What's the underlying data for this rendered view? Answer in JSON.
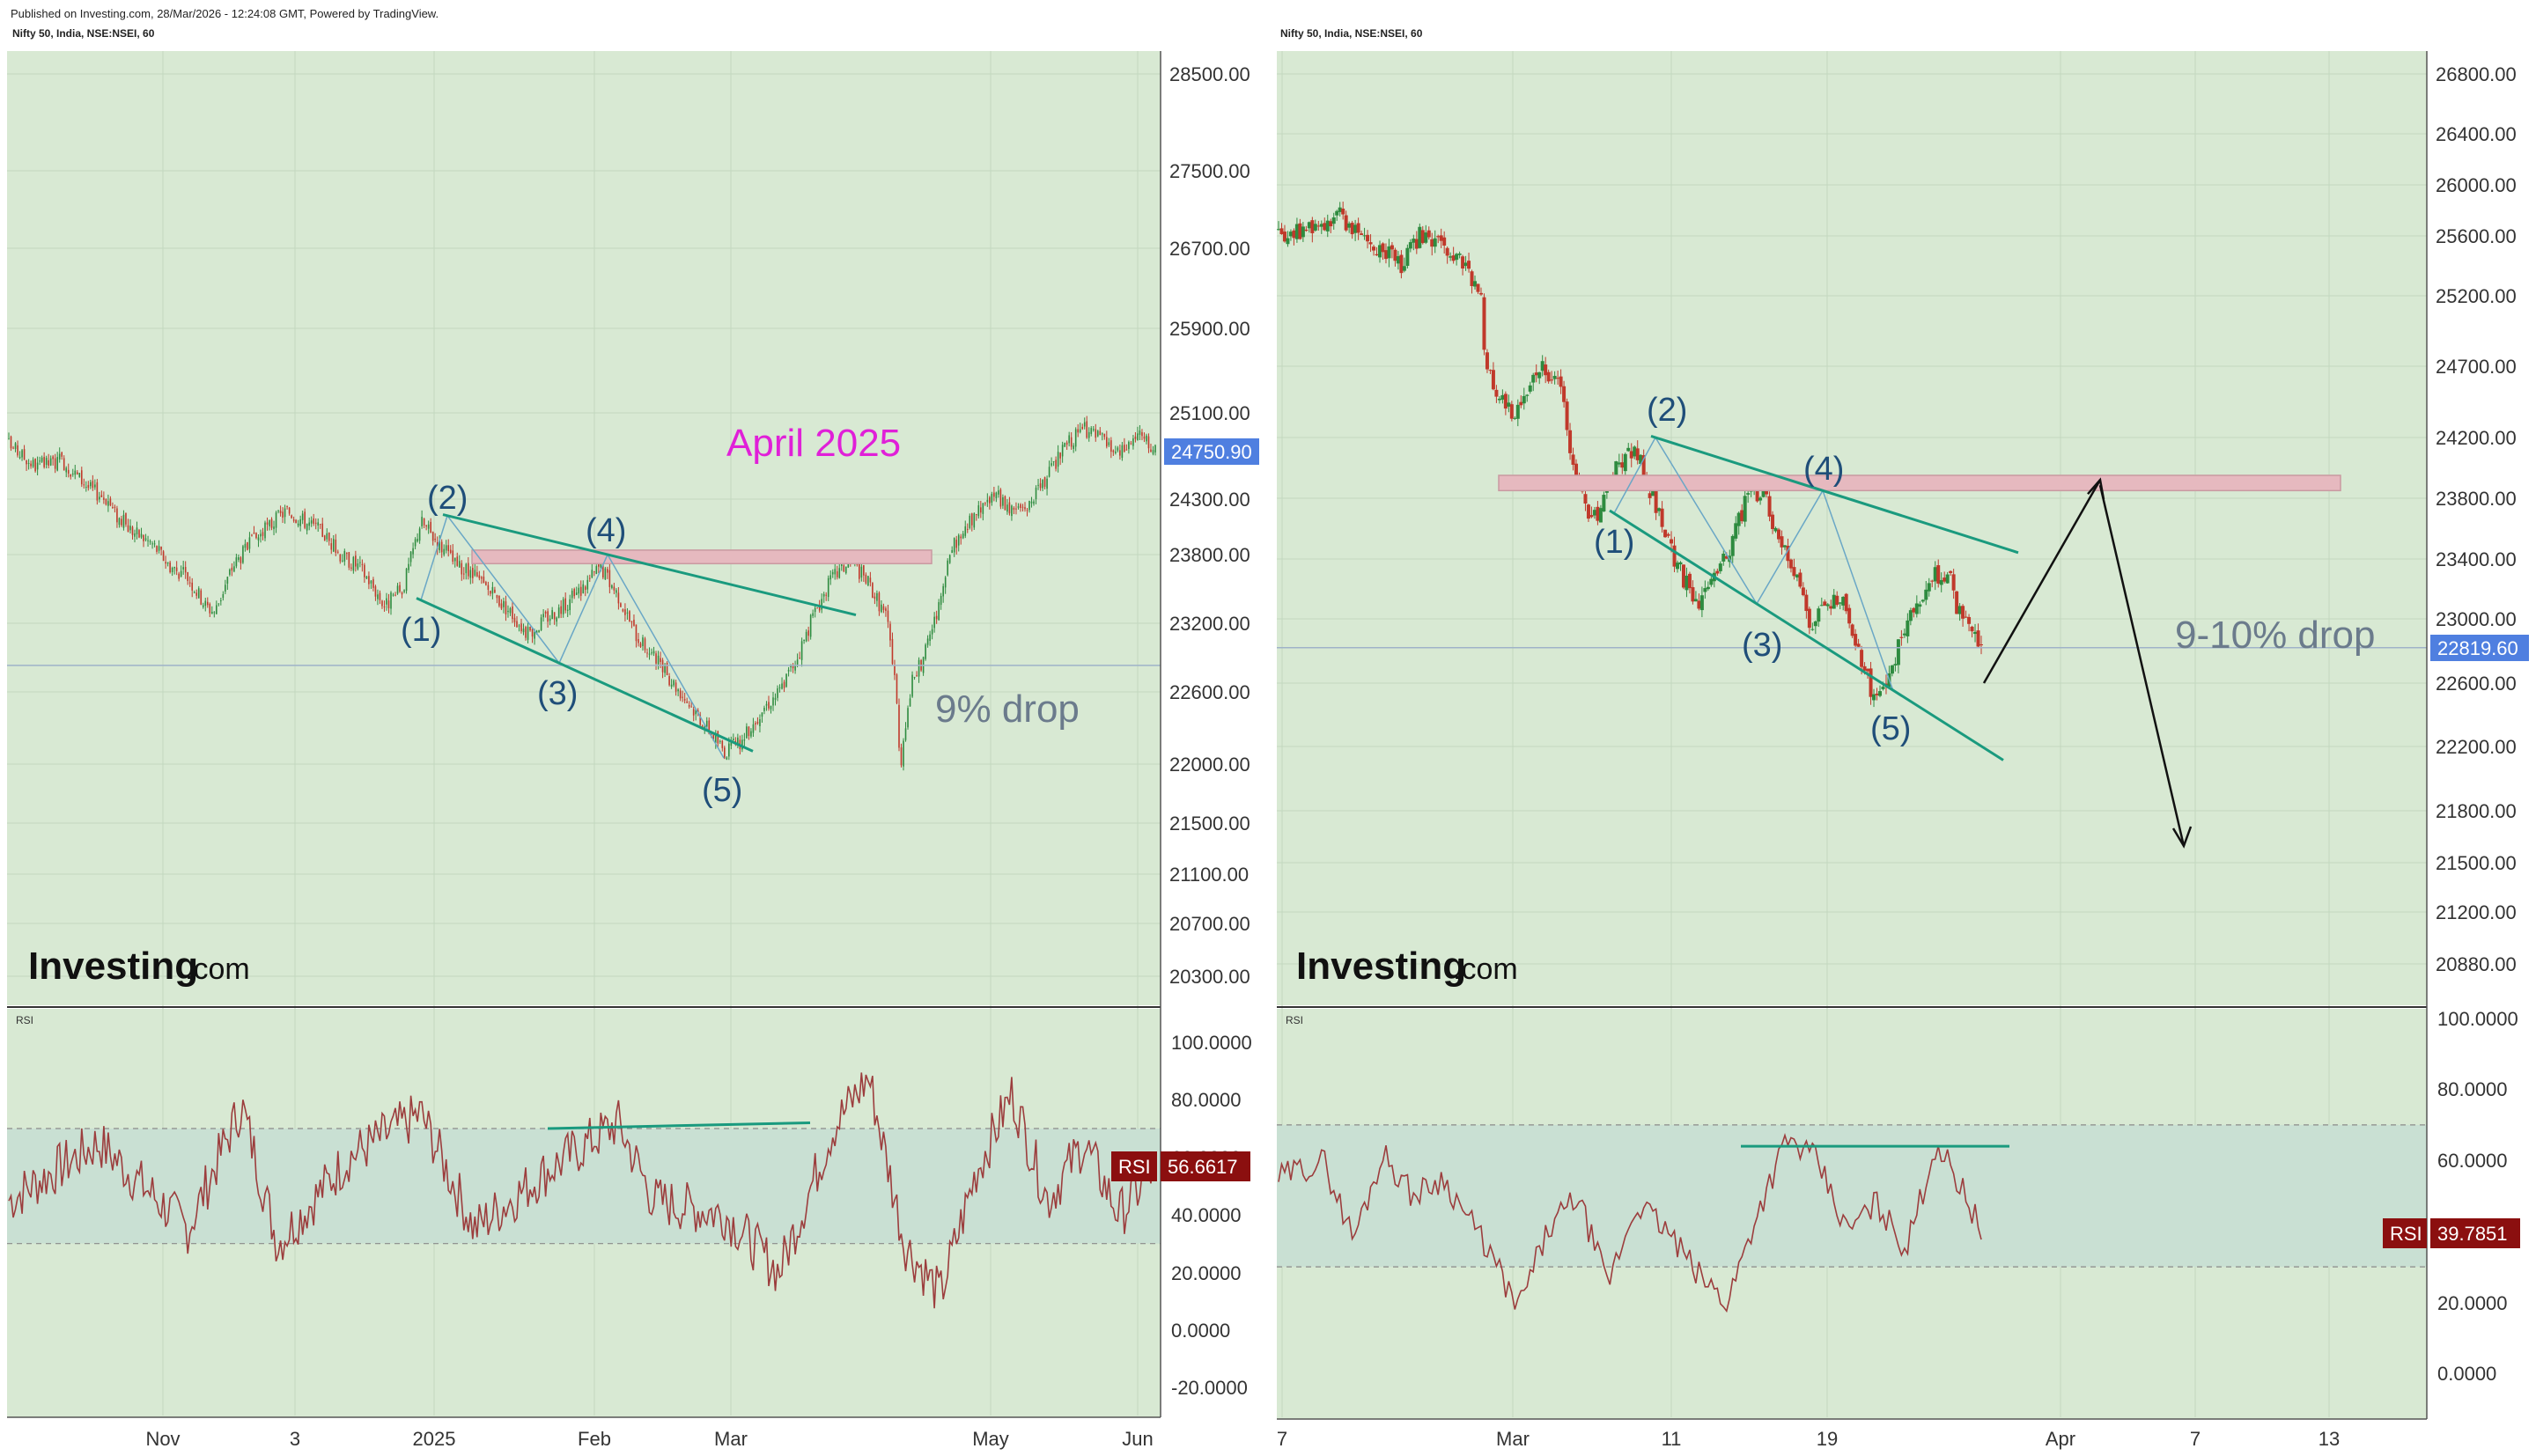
{
  "header": {
    "published": "Published on Investing.com, 28/Mar/2026 - 12:24:08 GMT, Powered by TradingView.",
    "symbol_left": "Nifty 50, India, NSE:NSEI, 60",
    "symbol_right": "Nifty 50, India, NSE:NSEI, 60"
  },
  "colors": {
    "panel_bg": "#d8e9d3",
    "rsi_band": "#c9e0d3",
    "wave_line": "#1a9a7e",
    "resistance": "#e6b9bf",
    "rsi_line": "#9c3d3d",
    "up_candle": "#2e8b3f",
    "down_candle": "#c0392b",
    "price_badge": "#4f7fe0",
    "rsi_badge": "#8b0f0f"
  },
  "chart_data": [
    {
      "type": "candlestick",
      "panel": "left",
      "title": "Nifty 50, India, NSE:NSEI, 60",
      "last_price": "24750.90",
      "y_ticks": [
        "28500.00",
        "27500.00",
        "26700.00",
        "25900.00",
        "25100.00",
        "24300.00",
        "23800.00",
        "23200.00",
        "22600.00",
        "22000.00",
        "21500.00",
        "21100.00",
        "20700.00",
        "20300.00"
      ],
      "x_ticks": [
        "Nov",
        "3",
        "2025",
        "Feb",
        "Mar",
        "May",
        "Jun"
      ],
      "scale": "log",
      "ylim": [
        20000,
        29000
      ],
      "path": [
        [
          0,
          24800
        ],
        [
          3,
          24600
        ],
        [
          6,
          24650
        ],
        [
          9,
          24400
        ],
        [
          11,
          24300
        ],
        [
          12,
          24150
        ],
        [
          14,
          24000
        ],
        [
          16,
          23900
        ],
        [
          18,
          23700
        ],
        [
          20,
          23600
        ],
        [
          22,
          23350
        ],
        [
          23,
          23300
        ],
        [
          25,
          23700
        ],
        [
          27,
          23900
        ],
        [
          29,
          24050
        ],
        [
          31,
          24200
        ],
        [
          33,
          24100
        ],
        [
          35,
          24000
        ],
        [
          37,
          23800
        ],
        [
          39,
          23700
        ],
        [
          40,
          23600
        ],
        [
          42,
          23350
        ],
        [
          44,
          23500
        ],
        [
          46,
          24100
        ],
        [
          48,
          23900
        ],
        [
          50,
          23700
        ],
        [
          52,
          23600
        ],
        [
          54,
          23450
        ],
        [
          56,
          23300
        ],
        [
          58,
          23100
        ],
        [
          60,
          23250
        ],
        [
          62,
          23350
        ],
        [
          64,
          23500
        ],
        [
          66,
          23700
        ],
        [
          68,
          23450
        ],
        [
          70,
          23100
        ],
        [
          72,
          22900
        ],
        [
          74,
          22700
        ],
        [
          76,
          22500
        ],
        [
          78,
          22300
        ],
        [
          80,
          22100
        ],
        [
          82,
          22200
        ],
        [
          84,
          22450
        ],
        [
          86,
          22600
        ],
        [
          88,
          22900
        ],
        [
          90,
          23300
        ],
        [
          92,
          23600
        ],
        [
          94,
          23750
        ],
        [
          96,
          23550
        ],
        [
          98,
          23250
        ],
        [
          99,
          22700
        ],
        [
          99.5,
          21950
        ],
        [
          100,
          22300
        ],
        [
          101,
          22750
        ],
        [
          102,
          22850
        ],
        [
          103,
          23150
        ],
        [
          104,
          23350
        ],
        [
          105,
          23800
        ],
        [
          106,
          23950
        ],
        [
          108,
          24150
        ],
        [
          110,
          24350
        ],
        [
          112,
          24200
        ],
        [
          114,
          24250
        ],
        [
          116,
          24500
        ],
        [
          118,
          24800
        ],
        [
          120,
          24950
        ],
        [
          122,
          24850
        ],
        [
          124,
          24700
        ],
        [
          126,
          24900
        ],
        [
          128,
          24751
        ]
      ],
      "waves": [
        {
          "label": "(1)",
          "value": 23400
        },
        {
          "label": "(2)",
          "value": 24150
        },
        {
          "label": "(3)",
          "value": 22850
        },
        {
          "label": "(4)",
          "value": 23800
        },
        {
          "label": "(5)",
          "value": 22050
        }
      ],
      "annotations": [
        "April 2025",
        "9% drop"
      ],
      "resistance_band": [
        23720,
        23840
      ],
      "horizontal_line": 22830
    },
    {
      "type": "candlestick",
      "panel": "right",
      "title": "Nifty 50, India, NSE:NSEI, 60",
      "last_price": "22819.60",
      "y_ticks": [
        "26800.00",
        "26400.00",
        "26000.00",
        "25600.00",
        "25200.00",
        "24700.00",
        "24200.00",
        "23800.00",
        "23400.00",
        "23000.00",
        "22600.00",
        "22200.00",
        "21800.00",
        "21500.00",
        "21200.00",
        "20880.00"
      ],
      "x_ticks": [
        "7",
        "Mar",
        "11",
        "19",
        "Apr",
        "7",
        "13"
      ],
      "scale": "log",
      "ylim": [
        20500,
        27000
      ],
      "path": [
        [
          0,
          25600
        ],
        [
          4,
          25650
        ],
        [
          8,
          25750
        ],
        [
          12,
          25550
        ],
        [
          16,
          25400
        ],
        [
          18,
          25620
        ],
        [
          22,
          25450
        ],
        [
          24,
          25380
        ],
        [
          26,
          25150
        ],
        [
          26.2,
          24800
        ],
        [
          28,
          24500
        ],
        [
          30,
          24350
        ],
        [
          32,
          24550
        ],
        [
          34,
          24700
        ],
        [
          36,
          24550
        ],
        [
          38,
          23950
        ],
        [
          40,
          23600
        ],
        [
          42,
          23850
        ],
        [
          44,
          24050
        ],
        [
          46,
          24100
        ],
        [
          48,
          23800
        ],
        [
          50,
          23500
        ],
        [
          52,
          23250
        ],
        [
          54,
          23100
        ],
        [
          56,
          23300
        ],
        [
          58,
          23500
        ],
        [
          60,
          23800
        ],
        [
          62,
          23850
        ],
        [
          64,
          23550
        ],
        [
          66,
          23300
        ],
        [
          68,
          22950
        ],
        [
          70,
          23100
        ],
        [
          72,
          23150
        ],
        [
          74,
          22800
        ],
        [
          76,
          22550
        ],
        [
          78,
          22600
        ],
        [
          80,
          22900
        ],
        [
          82,
          23100
        ],
        [
          84,
          23300
        ],
        [
          86,
          23250
        ],
        [
          87,
          23050
        ],
        [
          88,
          22950
        ],
        [
          90,
          22820
        ]
      ],
      "waves": [
        {
          "label": "(1)",
          "value": 23700
        },
        {
          "label": "(2)",
          "value": 24200
        },
        {
          "label": "(3)",
          "value": 23100
        },
        {
          "label": "(4)",
          "value": 23850
        },
        {
          "label": "(5)",
          "value": 22550
        }
      ],
      "annotations": [
        "9-10% drop"
      ],
      "projection": [
        {
          "to": 23920
        },
        {
          "to": 21800
        }
      ],
      "resistance_band": [
        23850,
        23950
      ],
      "horizontal_line": 22820
    },
    {
      "type": "line",
      "panel": "left-rsi",
      "title": "RSI",
      "value_label": "RSI",
      "last_value": "56.6617",
      "y_ticks": [
        "100.0000",
        "80.0000",
        "60.0000",
        "40.0000",
        "20.0000",
        "0.0000",
        "-20.0000"
      ],
      "ylim": [
        -30,
        108
      ],
      "band": [
        30,
        70
      ],
      "peaks": [
        [
          0,
          45
        ],
        [
          10,
          65
        ],
        [
          20,
          35
        ],
        [
          26,
          78
        ],
        [
          30,
          30
        ],
        [
          38,
          60
        ],
        [
          46,
          75
        ],
        [
          52,
          35
        ],
        [
          60,
          55
        ],
        [
          68,
          72
        ],
        [
          72,
          45
        ],
        [
          80,
          40
        ],
        [
          86,
          20
        ],
        [
          92,
          70
        ],
        [
          96,
          88
        ],
        [
          100,
          30
        ],
        [
          104,
          12
        ],
        [
          108,
          55
        ],
        [
          112,
          82
        ],
        [
          116,
          45
        ],
        [
          120,
          65
        ],
        [
          124,
          40
        ],
        [
          128,
          56.66
        ]
      ],
      "divergence_line": [
        70,
        72
      ]
    },
    {
      "type": "line",
      "panel": "right-rsi",
      "title": "RSI",
      "value_label": "RSI",
      "last_value": "39.7851",
      "y_ticks": [
        "100.0000",
        "80.0000",
        "60.0000",
        "40.0000",
        "20.0000",
        "0.0000"
      ],
      "ylim": [
        -12,
        104
      ],
      "band": [
        30,
        70
      ],
      "peaks": [
        [
          0,
          55
        ],
        [
          6,
          60
        ],
        [
          10,
          38
        ],
        [
          14,
          62
        ],
        [
          18,
          50
        ],
        [
          22,
          55
        ],
        [
          28,
          35
        ],
        [
          32,
          18
        ],
        [
          36,
          40
        ],
        [
          40,
          50
        ],
        [
          44,
          25
        ],
        [
          48,
          48
        ],
        [
          52,
          40
        ],
        [
          56,
          28
        ],
        [
          60,
          20
        ],
        [
          64,
          45
        ],
        [
          68,
          66
        ],
        [
          72,
          60
        ],
        [
          76,
          40
        ],
        [
          80,
          48
        ],
        [
          84,
          35
        ],
        [
          88,
          65
        ],
        [
          92,
          50
        ],
        [
          94,
          39.79
        ]
      ],
      "divergence_line": [
        64,
        64
      ]
    }
  ],
  "logos": {
    "left": "Investing",
    "left_suffix": ".com",
    "right": "Investing",
    "right_suffix": ".com"
  }
}
